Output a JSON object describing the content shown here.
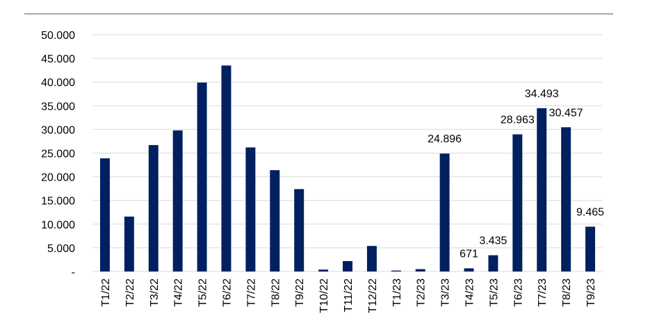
{
  "chart_data": {
    "type": "bar",
    "categories": [
      "T1/22",
      "T2/22",
      "T3/22",
      "T4/22",
      "T5/22",
      "T6/22",
      "T7/22",
      "T8/22",
      "T9/22",
      "T10/22",
      "T11/22",
      "T12/22",
      "T1/23",
      "T2/23",
      "T3/23",
      "T4/23",
      "T5/23",
      "T6/23",
      "T7/23",
      "T8/23",
      "T9/23"
    ],
    "values": [
      23900,
      11600,
      26700,
      29800,
      39900,
      43500,
      26200,
      21400,
      17400,
      400,
      2200,
      5400,
      200,
      500,
      24896,
      671,
      3435,
      28963,
      34493,
      30457,
      9465
    ],
    "value_labels": [
      null,
      null,
      null,
      null,
      null,
      null,
      null,
      null,
      null,
      null,
      null,
      null,
      null,
      null,
      "24.896",
      "671",
      "3.435",
      "28.963",
      "34.493",
      "30.457",
      "9.465"
    ],
    "color": "#002060",
    "ylim": [
      0,
      50000
    ],
    "yticks": [
      {
        "value": 0,
        "label": "-"
      },
      {
        "value": 5000,
        "label": "5.000"
      },
      {
        "value": 10000,
        "label": "10.000"
      },
      {
        "value": 15000,
        "label": "15.000"
      },
      {
        "value": 20000,
        "label": "20.000"
      },
      {
        "value": 25000,
        "label": "25.000"
      },
      {
        "value": 30000,
        "label": "30.000"
      },
      {
        "value": 35000,
        "label": "35.000"
      },
      {
        "value": 40000,
        "label": "40.000"
      },
      {
        "value": 45000,
        "label": "45.000"
      },
      {
        "value": 50000,
        "label": "50.000"
      }
    ],
    "grid": true
  }
}
